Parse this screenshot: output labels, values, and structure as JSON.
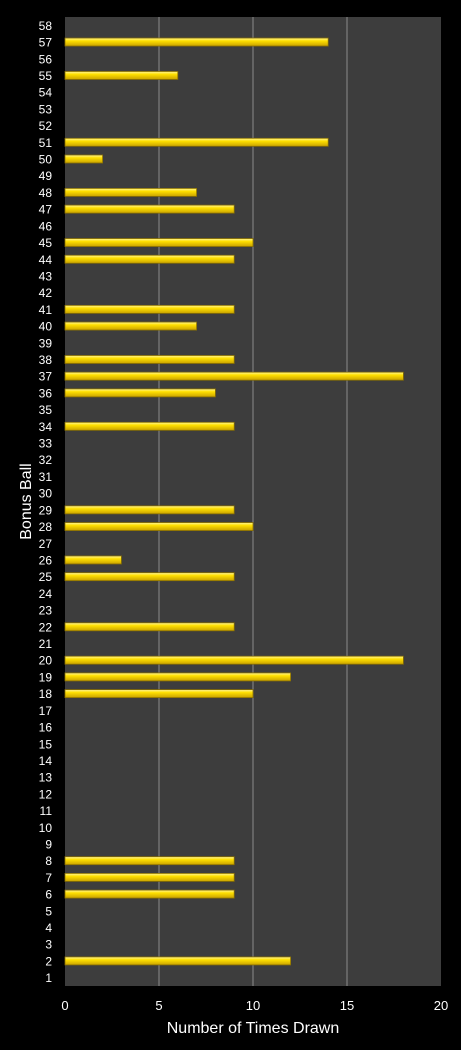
{
  "colors": {
    "background": "#000000",
    "plot_area": "#3d3d3d",
    "gridline": "#8a8a8a",
    "bar_fill": "#f5d400",
    "bar_edge": "#8a7000",
    "text": "#ffffff"
  },
  "chart_data": {
    "type": "bar",
    "orientation": "horizontal",
    "title": "",
    "xlabel": "Number of Times Drawn",
    "ylabel": "Bonus Ball",
    "xlim": [
      0,
      20
    ],
    "x_ticks": [
      "0",
      "5",
      "10",
      "15",
      "20"
    ],
    "grid": "vertical",
    "legend": "none",
    "categories": [
      "1",
      "2",
      "3",
      "4",
      "5",
      "6",
      "7",
      "8",
      "9",
      "10",
      "11",
      "12",
      "13",
      "14",
      "15",
      "16",
      "17",
      "18",
      "19",
      "20",
      "21",
      "22",
      "23",
      "24",
      "25",
      "26",
      "27",
      "28",
      "29",
      "30",
      "31",
      "32",
      "33",
      "34",
      "35",
      "36",
      "37",
      "38",
      "39",
      "40",
      "41",
      "42",
      "43",
      "44",
      "45",
      "46",
      "47",
      "48",
      "49",
      "50",
      "51",
      "52",
      "53",
      "54",
      "55",
      "56",
      "57",
      "58"
    ],
    "values": [
      0,
      12,
      0,
      0,
      0,
      9,
      9,
      9,
      0,
      0,
      0,
      0,
      0,
      0,
      0,
      0,
      0,
      10,
      12,
      18,
      0,
      9,
      0,
      0,
      9,
      3,
      0,
      10,
      9,
      0,
      0,
      0,
      0,
      9,
      0,
      8,
      18,
      9,
      0,
      7,
      9,
      0,
      0,
      9,
      10,
      0,
      9,
      7,
      0,
      2,
      14,
      0,
      0,
      0,
      6,
      0,
      14,
      0
    ]
  }
}
